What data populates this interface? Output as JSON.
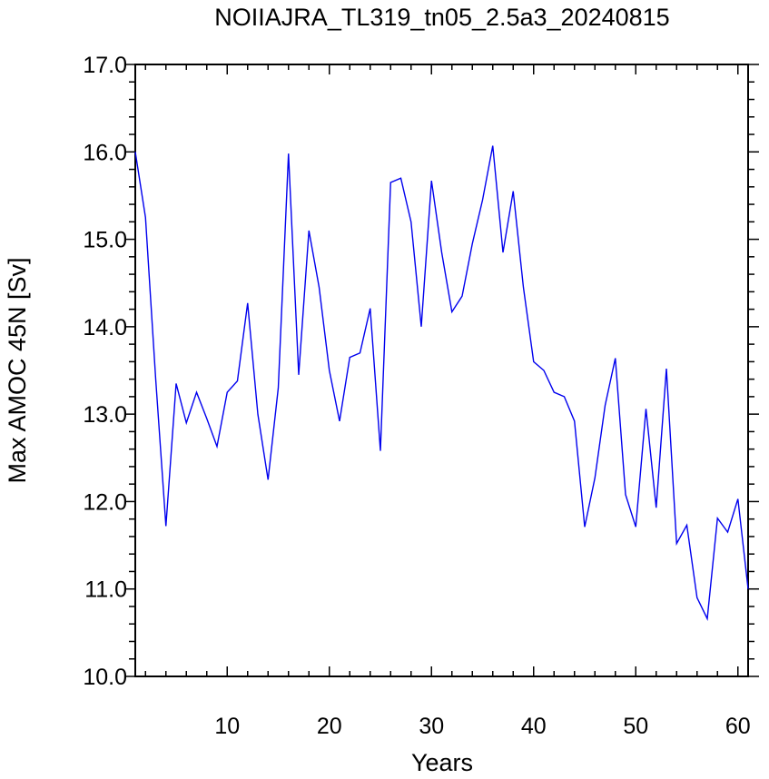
{
  "chart_data": {
    "type": "line",
    "title": "NOIIAJRA_TL319_tn05_2.5a3_20240815",
    "xlabel": "Years",
    "ylabel": "Max AMOC 45N [Sv]",
    "xlim": [
      1,
      61
    ],
    "ylim": [
      10.0,
      17.0
    ],
    "x_ticks": [
      10,
      20,
      30,
      40,
      50,
      60
    ],
    "x_tick_labels": [
      "10",
      "20",
      "30",
      "40",
      "50",
      "60"
    ],
    "y_ticks": [
      10,
      11,
      12,
      13,
      14,
      15,
      16,
      17
    ],
    "y_tick_labels": [
      "10.0",
      "11.0",
      "12.0",
      "13.0",
      "14.0",
      "15.0",
      "16.0",
      "17.0"
    ],
    "grid": false,
    "line_color": "#0000ee",
    "series": [
      {
        "x": [
          1,
          2,
          3,
          4,
          5,
          6,
          7,
          8,
          9,
          10,
          11,
          12,
          13,
          14,
          15,
          16,
          17,
          18,
          19,
          20,
          21,
          22,
          23,
          24,
          25,
          26,
          27,
          28,
          29,
          30,
          31,
          32,
          33,
          34,
          35,
          36,
          37,
          38,
          39,
          40,
          41,
          42,
          43,
          44,
          45,
          46,
          47,
          48,
          49,
          50,
          51,
          52,
          53,
          54,
          55,
          56,
          57,
          58,
          59,
          60,
          61
        ],
        "values": [
          16.0,
          15.25,
          13.4,
          11.72,
          13.35,
          12.9,
          13.25,
          12.95,
          12.63,
          13.25,
          13.38,
          14.27,
          13.0,
          12.25,
          13.3,
          15.98,
          13.45,
          15.1,
          14.45,
          13.5,
          12.92,
          13.65,
          13.7,
          14.21,
          12.58,
          15.65,
          15.7,
          15.2,
          14.0,
          15.67,
          14.85,
          14.17,
          14.35,
          14.95,
          15.45,
          16.07,
          14.85,
          15.55,
          14.45,
          13.6,
          13.5,
          13.25,
          13.2,
          12.92,
          11.71,
          12.27,
          13.1,
          13.64,
          12.08,
          11.71,
          13.06,
          11.93,
          13.52,
          11.52,
          11.73,
          10.9,
          10.66,
          11.81,
          11.65,
          12.03,
          11.0
        ]
      }
    ]
  }
}
